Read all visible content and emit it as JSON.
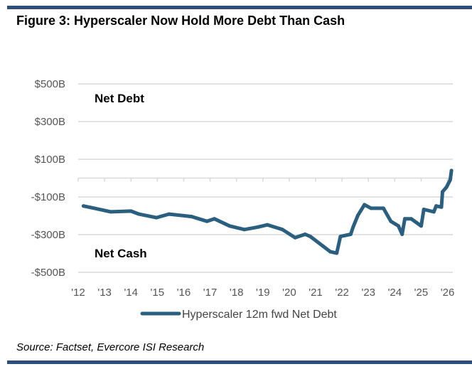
{
  "title": "Figure 3: Hyperscaler Now Hold More Debt Than Cash",
  "source": "Source: Factset, Evercore ISI Research",
  "colors": {
    "line": "#2a5f80",
    "bars": "#2d4f7c",
    "grid": "#d9d9d9"
  },
  "chart_data": {
    "type": "line",
    "title": "",
    "xlabel": "",
    "ylabel": "",
    "ylim": [
      -500,
      500
    ],
    "xlim": [
      2012,
      2026.2
    ],
    "grid": true,
    "legend": "bottom",
    "y_ticks": [
      500,
      300,
      100,
      -100,
      -300,
      -500
    ],
    "y_tick_labels": [
      "$500B",
      "$300B",
      "$100B",
      "-$100B",
      "-$300B",
      "-$500B"
    ],
    "x_ticks": [
      2012,
      2013,
      2014,
      2015,
      2016,
      2017,
      2018,
      2019,
      2020,
      2021,
      2022,
      2023,
      2024,
      2025,
      2026
    ],
    "x_tick_labels": [
      "'12",
      "'13",
      "'14",
      "'15",
      "'16",
      "'17",
      "'18",
      "'19",
      "'20",
      "'21",
      "'22",
      "'23",
      "'24",
      "'25",
      "'26"
    ],
    "annotations": [
      "Net Debt",
      "Net Cash"
    ],
    "series": [
      {
        "name": "Hyperscaler 12m fwd Net Debt",
        "x": [
          2012.2,
          2013.24,
          2014.0,
          2014.3,
          2014.96,
          2015.44,
          2016.3,
          2016.88,
          2017.16,
          2017.74,
          2018.3,
          2018.8,
          2019.17,
          2019.74,
          2020.22,
          2020.6,
          2020.8,
          2021.27,
          2021.56,
          2021.8,
          2021.94,
          2022.33,
          2022.42,
          2022.6,
          2022.85,
          2023.1,
          2023.57,
          2023.85,
          2024.14,
          2024.28,
          2024.38,
          2024.62,
          2025.0,
          2025.1,
          2025.48,
          2025.57,
          2025.77,
          2025.81,
          2025.96,
          2026.1,
          2026.15
        ],
        "y": [
          -148,
          -179,
          -175,
          -191,
          -210,
          -191,
          -204,
          -229,
          -216,
          -254,
          -273,
          -260,
          -248,
          -273,
          -316,
          -298,
          -310,
          -360,
          -391,
          -398,
          -310,
          -298,
          -260,
          -198,
          -141,
          -160,
          -160,
          -229,
          -254,
          -298,
          -216,
          -216,
          -254,
          -166,
          -179,
          -148,
          -154,
          -73,
          -48,
          -10,
          40
        ]
      }
    ]
  }
}
